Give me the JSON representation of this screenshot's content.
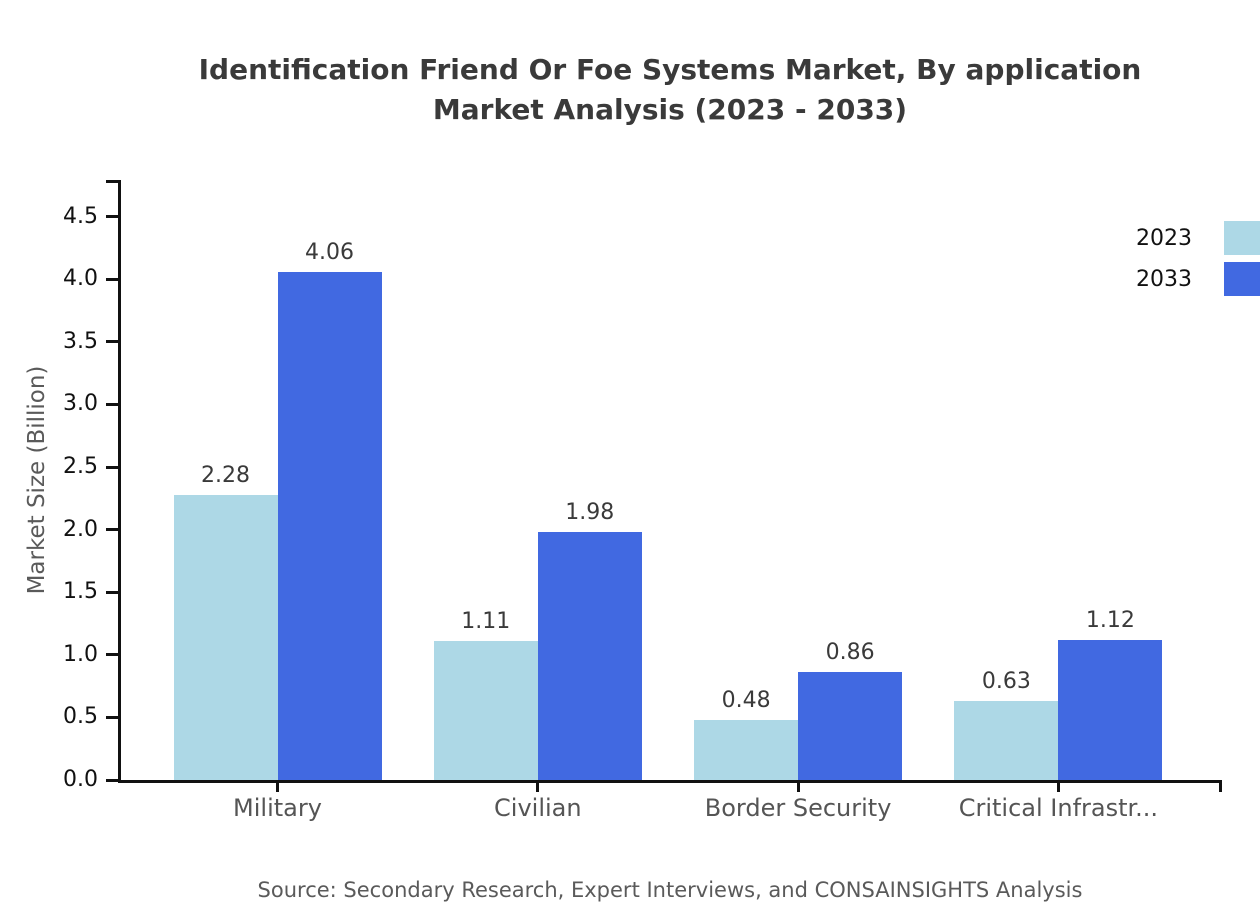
{
  "title": {
    "line1": "Identification Friend Or Foe Systems Market, By application",
    "line2": "Market Analysis (2023 - 2033)"
  },
  "source": "Source: Secondary Research, Expert Interviews, and CONSAINSIGHTS Analysis",
  "colors": {
    "series_2023": "#ADD8E6",
    "series_2033": "#4169E1",
    "axis": "#111111",
    "title_text": "#3A3A3A",
    "value_text": "#3A3A3A",
    "category_text": "#555555",
    "muted_text": "#5A5A5A",
    "background": "#FFFFFF"
  },
  "chart_data": {
    "type": "bar",
    "title": "Identification Friend Or Foe Systems Market, By application Market Analysis (2023 - 2033)",
    "categories": [
      "Military",
      "Civilian",
      "Border Security",
      "Critical Infrastr..."
    ],
    "series": [
      {
        "name": "2023",
        "color": "#ADD8E6",
        "values": [
          2.28,
          1.11,
          0.48,
          0.63
        ]
      },
      {
        "name": "2033",
        "color": "#4169E1",
        "values": [
          4.06,
          1.98,
          0.86,
          1.12
        ]
      }
    ],
    "value_labels": [
      "2.28",
      "4.06",
      "1.11",
      "1.98",
      "0.48",
      "0.86",
      "0.63",
      "1.12"
    ],
    "xlabel": "",
    "ylabel": "Market Size (Billion)",
    "ylim": [
      0,
      4.8
    ],
    "yticks": [
      0.0,
      0.5,
      1.0,
      1.5,
      2.0,
      2.5,
      3.0,
      3.5,
      4.0,
      4.5
    ],
    "ytick_labels": [
      "0.0",
      "0.5",
      "1.0",
      "1.5",
      "2.0",
      "2.5",
      "3.0",
      "3.5",
      "4.0",
      "4.5"
    ],
    "grid": false,
    "legend_position": "upper-right",
    "legend_entries": [
      "2023",
      "2033"
    ]
  }
}
